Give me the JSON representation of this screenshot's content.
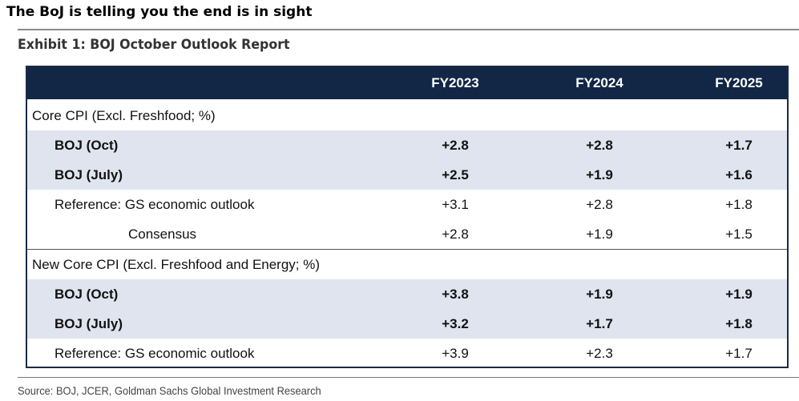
{
  "headline": "The BoJ is telling you the end is in sight",
  "exhibit_title": "Exhibit 1: BOJ October Outlook Report",
  "columns": [
    "FY2023",
    "FY2024",
    "FY2025"
  ],
  "sections": [
    {
      "title": "Core CPI (Excl. Freshfood; %)",
      "rows": [
        {
          "label": "BOJ (Oct)",
          "values": [
            "+2.8",
            "+2.8",
            "+1.7"
          ]
        },
        {
          "label": "BOJ (July)",
          "values": [
            "+2.5",
            "+1.9",
            "+1.6"
          ]
        },
        {
          "label": "Reference: GS economic outlook",
          "values": [
            "+3.1",
            "+2.8",
            "+1.8"
          ]
        },
        {
          "label": "Consensus",
          "values": [
            "+2.8",
            "+1.9",
            "+1.5"
          ]
        }
      ]
    },
    {
      "title": "New Core CPI (Excl. Freshfood and Energy; %)",
      "rows": [
        {
          "label": "BOJ (Oct)",
          "values": [
            "+3.8",
            "+1.9",
            "+1.9"
          ]
        },
        {
          "label": "BOJ (July)",
          "values": [
            "+3.2",
            "+1.7",
            "+1.8"
          ]
        },
        {
          "label": "Reference: GS economic outlook",
          "values": [
            "+3.9",
            "+2.3",
            "+1.7"
          ]
        }
      ]
    }
  ],
  "source": "Source: BOJ, JCER, Goldman Sachs Global Investment Research"
}
